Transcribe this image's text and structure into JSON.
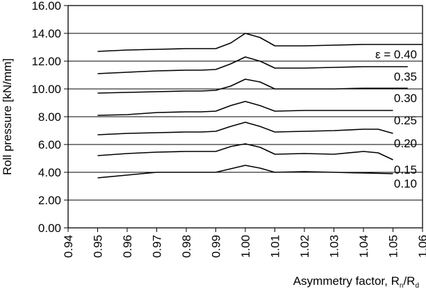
{
  "chart_data": {
    "type": "line",
    "title": "",
    "xlabel_main": "Asymmetry factor, R",
    "xlabel_sub1": "n",
    "xlabel_sep": "/R",
    "xlabel_sub2": "d",
    "ylabel": "Roll pressure [kN/mm]",
    "xlim": [
      0.94,
      1.06
    ],
    "ylim": [
      0.0,
      16.0
    ],
    "x_ticks": [
      "0.94",
      "0.95",
      "0.96",
      "0.97",
      "0.98",
      "0.99",
      "1.00",
      "1.01",
      "1.02",
      "1.03",
      "1.04",
      "1.05",
      "1.06"
    ],
    "y_ticks": [
      "0.00",
      "2.00",
      "4.00",
      "6.00",
      "8.00",
      "10.00",
      "12.00",
      "14.00",
      "16.00"
    ],
    "grid": "horizontal",
    "legend": "inline labels at right end of curves",
    "line_color": "#000000",
    "series": [
      {
        "label": "ε = 0.40",
        "x": [
          0.95,
          0.96,
          0.97,
          0.98,
          0.985,
          0.99,
          0.995,
          1.0,
          1.005,
          1.01,
          1.02,
          1.03,
          1.04,
          1.05,
          1.06
        ],
        "y": [
          12.7,
          12.8,
          12.85,
          12.9,
          12.9,
          12.9,
          13.3,
          14.0,
          13.7,
          13.1,
          13.1,
          13.15,
          13.2,
          13.2,
          13.2
        ]
      },
      {
        "label": "0.35",
        "x": [
          0.95,
          0.96,
          0.97,
          0.98,
          0.985,
          0.99,
          0.995,
          1.0,
          1.005,
          1.01,
          1.02,
          1.03,
          1.04,
          1.05,
          1.055
        ],
        "y": [
          11.1,
          11.2,
          11.3,
          11.35,
          11.35,
          11.4,
          11.8,
          12.3,
          12.0,
          11.5,
          11.5,
          11.55,
          11.6,
          11.6,
          11.6
        ]
      },
      {
        "label": "0.30",
        "x": [
          0.95,
          0.96,
          0.97,
          0.98,
          0.985,
          0.99,
          0.995,
          1.0,
          1.005,
          1.01,
          1.02,
          1.03,
          1.04,
          1.05,
          1.055
        ],
        "y": [
          9.7,
          9.75,
          9.8,
          9.85,
          9.85,
          9.9,
          10.2,
          10.7,
          10.5,
          10.0,
          10.0,
          10.0,
          10.05,
          10.05,
          10.05
        ]
      },
      {
        "label": "0.25",
        "x": [
          0.95,
          0.96,
          0.97,
          0.98,
          0.985,
          0.99,
          0.995,
          1.0,
          1.005,
          1.01,
          1.02,
          1.03,
          1.04,
          1.05
        ],
        "y": [
          8.1,
          8.15,
          8.3,
          8.35,
          8.35,
          8.4,
          8.8,
          9.1,
          8.8,
          8.4,
          8.45,
          8.45,
          8.45,
          8.45
        ]
      },
      {
        "label": "0.20",
        "x": [
          0.95,
          0.96,
          0.97,
          0.98,
          0.985,
          0.99,
          0.995,
          1.0,
          1.005,
          1.01,
          1.02,
          1.03,
          1.04,
          1.045,
          1.05
        ],
        "y": [
          6.7,
          6.8,
          6.85,
          6.9,
          6.9,
          6.95,
          7.3,
          7.6,
          7.3,
          6.9,
          6.95,
          7.0,
          7.1,
          7.1,
          6.8
        ]
      },
      {
        "label": "0.15",
        "x": [
          0.95,
          0.96,
          0.97,
          0.98,
          0.985,
          0.99,
          0.995,
          1.0,
          1.005,
          1.01,
          1.02,
          1.03,
          1.04,
          1.045,
          1.05
        ],
        "y": [
          5.2,
          5.35,
          5.45,
          5.5,
          5.5,
          5.5,
          5.85,
          6.05,
          5.8,
          5.3,
          5.35,
          5.3,
          5.5,
          5.4,
          4.9
        ]
      },
      {
        "label": "0.10",
        "x": [
          0.95,
          0.96,
          0.97,
          0.98,
          0.985,
          0.99,
          0.995,
          1.0,
          1.005,
          1.01,
          1.02,
          1.03,
          1.04,
          1.05
        ],
        "y": [
          3.6,
          3.8,
          4.0,
          4.0,
          4.0,
          4.0,
          4.25,
          4.5,
          4.3,
          4.0,
          4.05,
          4.0,
          3.95,
          3.9
        ]
      }
    ]
  }
}
